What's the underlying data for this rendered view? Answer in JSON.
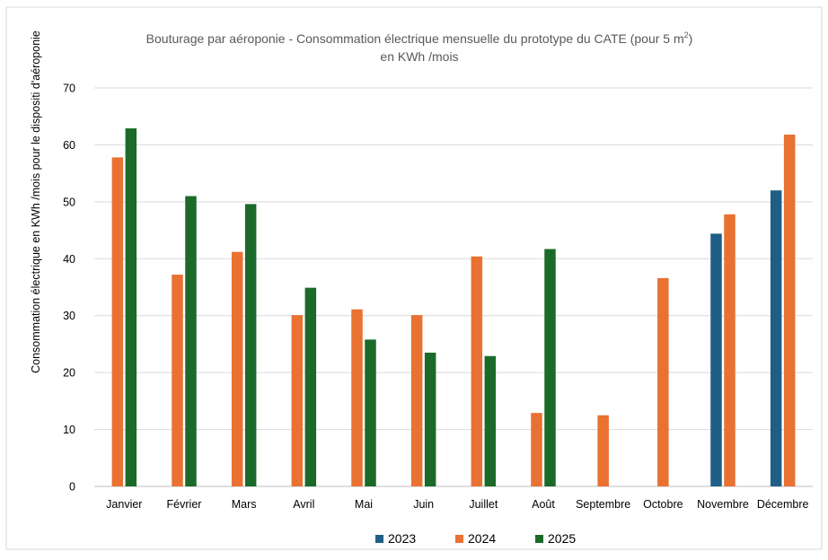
{
  "chart_data": {
    "type": "bar",
    "title": "Bouturage par aéroponie - Consommation électrique mensuelle du prototype du CATE (pour 5 m²)",
    "title_line2": "en KWh /mois",
    "ylabel": "Consommation électrique en KWh /mois pour le dispositi d'aéroponie",
    "xlabel": "",
    "ylim": [
      0,
      70
    ],
    "yticks": [
      0,
      10,
      20,
      30,
      40,
      50,
      60,
      70
    ],
    "grid": true,
    "legend_position": "bottom",
    "categories": [
      "Janvier",
      "Février",
      "Mars",
      "Avril",
      "Mai",
      "Juin",
      "Juillet",
      "Août",
      "Septembre",
      "Octobre",
      "Novembre",
      "Décembre"
    ],
    "series": [
      {
        "name": "2023",
        "color": "#1f5f86",
        "values": [
          null,
          null,
          null,
          null,
          null,
          null,
          null,
          null,
          null,
          null,
          44.4,
          52.0
        ]
      },
      {
        "name": "2024",
        "color": "#e97132",
        "values": [
          57.8,
          37.2,
          41.2,
          30.1,
          31.1,
          30.1,
          40.4,
          12.9,
          12.5,
          36.6,
          47.8,
          61.8
        ]
      },
      {
        "name": "2025",
        "color": "#1b6a2a",
        "values": [
          62.9,
          51.0,
          49.6,
          34.9,
          25.8,
          23.5,
          22.9,
          41.7,
          null,
          null,
          null,
          null
        ]
      }
    ]
  }
}
